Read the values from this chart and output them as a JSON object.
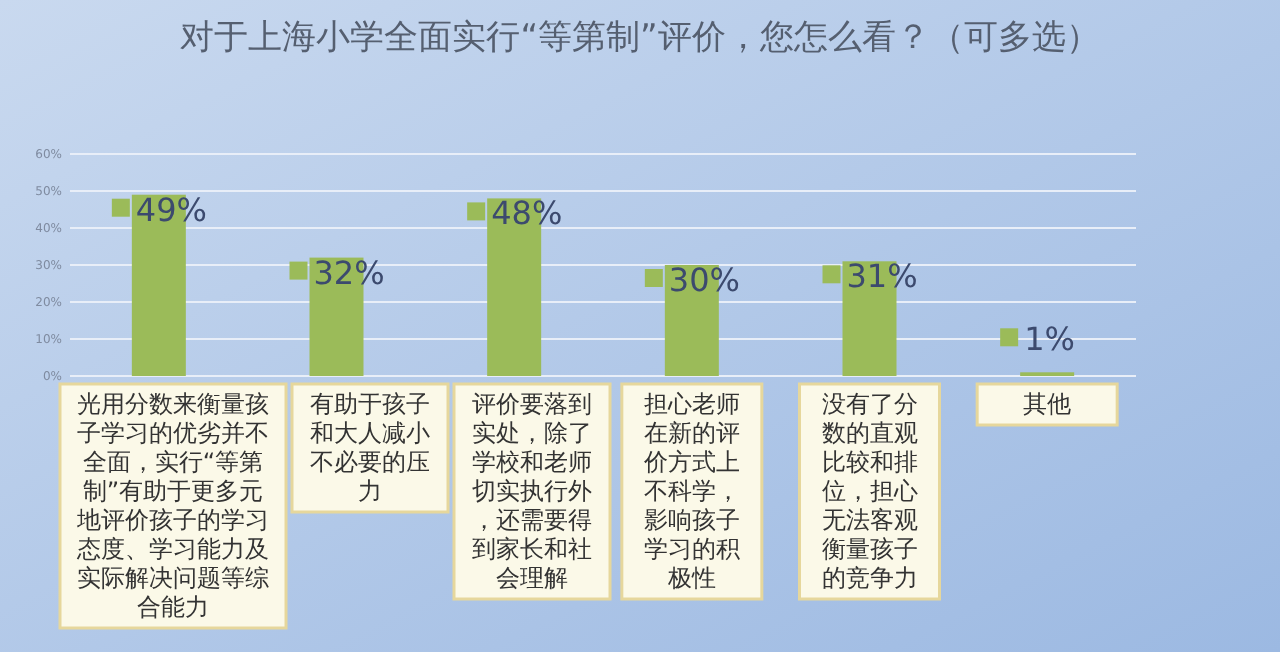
{
  "chart_data": {
    "type": "bar",
    "title": "对于上海小学全面实行“等第制”评价，您怎么看？（可多选）",
    "categories": [
      "光用分数来衡量孩子学习的优劣并不全面，实行“等第制”有助于更多元地评价孩子的学习态度、学习能力及实际解决问题等综合能力",
      "有助于孩子和大人减小不必要的压力",
      "评价要落到实处，除了学校和老师切实执行外，还需要得到家长和社会理解",
      "担心老师在新的评价方式上不科学，影响孩子学习的积极性",
      "没有了分数的直观比较和排位，担心无法客观衡量孩子的竞争力",
      "其他"
    ],
    "values": [
      49,
      32,
      48,
      30,
      31,
      1
    ],
    "value_labels": [
      "49%",
      "32%",
      "48%",
      "30%",
      "31%",
      "1%"
    ],
    "color": "#9bbb59",
    "ylim": [
      0,
      60
    ],
    "yticks": [
      {
        "value": 0,
        "label": "0%"
      },
      {
        "value": 10,
        "label": "10%"
      },
      {
        "value": 20,
        "label": "20%"
      },
      {
        "value": 30,
        "label": "30%"
      },
      {
        "value": 40,
        "label": "40%"
      },
      {
        "value": 50,
        "label": "50%"
      },
      {
        "value": 60,
        "label": "60%"
      }
    ],
    "grid": "y"
  }
}
